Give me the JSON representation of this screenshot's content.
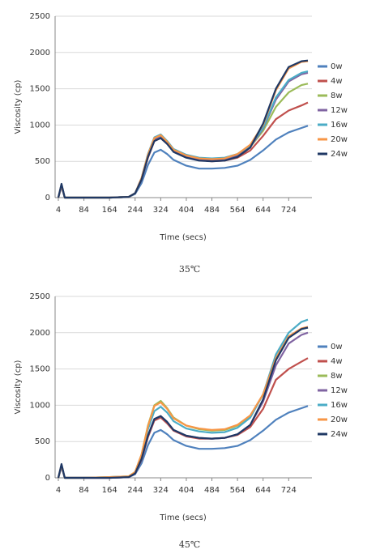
{
  "chart_data": [
    {
      "type": "line",
      "caption": "35℃",
      "xlabel": "Time (secs)",
      "ylabel": "Viscosity (cp)",
      "x": [
        4,
        14,
        24,
        44,
        84,
        164,
        224,
        244,
        264,
        284,
        304,
        324,
        344,
        364,
        404,
        444,
        484,
        524,
        564,
        604,
        644,
        684,
        724,
        764,
        784
      ],
      "xlim": [
        4,
        784
      ],
      "xticks": [
        4,
        84,
        164,
        244,
        324,
        404,
        484,
        564,
        644,
        724
      ],
      "ylim": [
        0,
        2500
      ],
      "yticks": [
        0,
        500,
        1000,
        1500,
        2000,
        2500
      ],
      "grid": true,
      "series": [
        {
          "name": "0w",
          "color": "#4f81bd",
          "values": [
            0,
            150,
            0,
            0,
            0,
            0,
            10,
            50,
            200,
            450,
            620,
            660,
            600,
            520,
            440,
            400,
            400,
            410,
            440,
            520,
            650,
            800,
            900,
            960,
            990
          ]
        },
        {
          "name": "4w",
          "color": "#c0504d",
          "values": [
            0,
            160,
            0,
            0,
            0,
            0,
            10,
            60,
            250,
            550,
            780,
            820,
            740,
            640,
            560,
            520,
            500,
            510,
            550,
            650,
            850,
            1080,
            1200,
            1270,
            1310
          ]
        },
        {
          "name": "8w",
          "color": "#9bbb59",
          "values": [
            0,
            170,
            0,
            0,
            0,
            0,
            10,
            60,
            260,
            580,
            810,
            850,
            770,
            660,
            580,
            540,
            530,
            540,
            590,
            700,
            920,
            1250,
            1450,
            1550,
            1570
          ]
        },
        {
          "name": "12w",
          "color": "#8064a2",
          "values": [
            0,
            170,
            0,
            0,
            0,
            0,
            10,
            60,
            260,
            570,
            800,
            830,
            750,
            650,
            570,
            530,
            520,
            530,
            580,
            700,
            950,
            1350,
            1600,
            1700,
            1720
          ]
        },
        {
          "name": "16w",
          "color": "#4bacc6",
          "values": [
            0,
            180,
            0,
            0,
            0,
            0,
            10,
            60,
            270,
            600,
            830,
            870,
            780,
            670,
            590,
            550,
            540,
            550,
            600,
            720,
            960,
            1380,
            1620,
            1720,
            1740
          ]
        },
        {
          "name": "20w",
          "color": "#f79646",
          "values": [
            0,
            180,
            0,
            0,
            0,
            0,
            10,
            60,
            270,
            590,
            820,
            860,
            770,
            660,
            580,
            540,
            530,
            540,
            600,
            730,
            1000,
            1480,
            1780,
            1870,
            1880
          ]
        },
        {
          "name": "24w",
          "color": "#1f3864",
          "values": [
            0,
            190,
            0,
            0,
            0,
            0,
            10,
            60,
            250,
            560,
            780,
            820,
            740,
            630,
            550,
            510,
            500,
            510,
            560,
            690,
            1020,
            1500,
            1800,
            1880,
            1890
          ]
        }
      ]
    },
    {
      "type": "line",
      "caption": "45℃",
      "xlabel": "Time (secs)",
      "ylabel": "Viscosity (cp)",
      "x": [
        4,
        14,
        24,
        44,
        84,
        164,
        224,
        244,
        264,
        284,
        304,
        324,
        344,
        364,
        404,
        444,
        484,
        524,
        564,
        604,
        644,
        684,
        724,
        764,
        784
      ],
      "xlim": [
        4,
        784
      ],
      "xticks": [
        4,
        84,
        164,
        244,
        324,
        404,
        484,
        564,
        644,
        724
      ],
      "ylim": [
        0,
        2500
      ],
      "yticks": [
        0,
        500,
        1000,
        1500,
        2000,
        2500
      ],
      "grid": true,
      "series": [
        {
          "name": "0w",
          "color": "#4f81bd",
          "values": [
            0,
            150,
            0,
            0,
            0,
            0,
            10,
            50,
            200,
            450,
            620,
            660,
            600,
            520,
            440,
            400,
            400,
            410,
            440,
            520,
            650,
            800,
            900,
            960,
            990
          ]
        },
        {
          "name": "4w",
          "color": "#c0504d",
          "values": [
            0,
            160,
            0,
            0,
            0,
            0,
            10,
            60,
            250,
            560,
            790,
            830,
            750,
            650,
            570,
            540,
            540,
            550,
            590,
            700,
            950,
            1350,
            1500,
            1600,
            1650
          ]
        },
        {
          "name": "8w",
          "color": "#9bbb59",
          "values": [
            0,
            170,
            0,
            0,
            0,
            10,
            20,
            80,
            320,
            720,
            1000,
            1060,
            960,
            830,
            720,
            670,
            650,
            660,
            720,
            850,
            1150,
            1650,
            1950,
            2050,
            2070
          ]
        },
        {
          "name": "12w",
          "color": "#8064a2",
          "values": [
            0,
            170,
            0,
            0,
            0,
            0,
            10,
            60,
            260,
            580,
            810,
            850,
            770,
            660,
            580,
            550,
            540,
            550,
            600,
            730,
            1050,
            1550,
            1850,
            1970,
            2000
          ]
        },
        {
          "name": "16w",
          "color": "#4bacc6",
          "values": [
            0,
            180,
            0,
            0,
            0,
            10,
            20,
            70,
            300,
            670,
            920,
            980,
            900,
            780,
            680,
            640,
            620,
            630,
            690,
            830,
            1150,
            1700,
            2000,
            2150,
            2180
          ]
        },
        {
          "name": "20w",
          "color": "#f79646",
          "values": [
            0,
            180,
            0,
            0,
            0,
            10,
            20,
            80,
            320,
            710,
            990,
            1040,
            950,
            820,
            720,
            680,
            660,
            670,
            730,
            860,
            1150,
            1650,
            1950,
            2060,
            2080
          ]
        },
        {
          "name": "24w",
          "color": "#1f3864",
          "values": [
            0,
            190,
            0,
            0,
            0,
            0,
            10,
            60,
            260,
            580,
            810,
            850,
            770,
            660,
            580,
            550,
            540,
            550,
            600,
            730,
            1080,
            1620,
            1930,
            2050,
            2070
          ]
        }
      ]
    }
  ]
}
